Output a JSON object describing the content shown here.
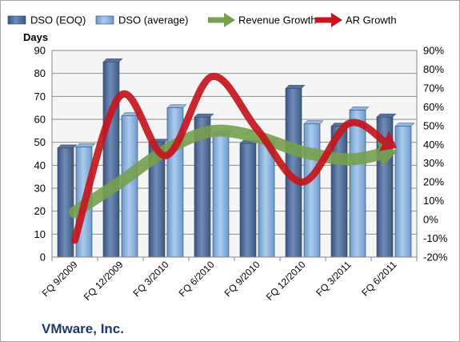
{
  "colors": {
    "dso_eoq_bar": "#4f6b96",
    "dso_avg_bar": "#8ab4e0",
    "revenue_growth": "#77a04f",
    "ar_growth": "#c5161d",
    "company_text": "#1f3a6e"
  },
  "company_name": "VMware, Inc.",
  "chart_data": {
    "type": "bar",
    "title": "",
    "categories": [
      "FQ 9/2009",
      "FQ 12/2009",
      "FQ 3/2010",
      "FQ 6/2010",
      "FQ 9/2010",
      "FQ 12/2010",
      "FQ 3/2011",
      "FQ 6/2011"
    ],
    "ylabel": "Days",
    "ylim": [
      0,
      90
    ],
    "yticks": [
      0,
      10,
      20,
      30,
      40,
      50,
      60,
      70,
      80,
      90
    ],
    "y2lim": [
      -20,
      90
    ],
    "y2ticks": [
      "-20%",
      "-10%",
      "0%",
      "10%",
      "20%",
      "30%",
      "40%",
      "50%",
      "60%",
      "70%",
      "80%",
      "90%"
    ],
    "y2ticks_values": [
      -20,
      -10,
      0,
      10,
      20,
      30,
      40,
      50,
      60,
      70,
      80,
      90
    ],
    "grid": true,
    "legend_position": "top",
    "series": [
      {
        "name": "DSO (EOQ)",
        "type": "bar",
        "axis": "left",
        "values": [
          47.5,
          85,
          50,
          61,
          49.5,
          73.5,
          57,
          61
        ]
      },
      {
        "name": "DSO (average)",
        "type": "bar",
        "axis": "left",
        "values": [
          48,
          61.5,
          65,
          53.5,
          50,
          58,
          64,
          57
        ]
      },
      {
        "name": "Revenue Growth",
        "type": "line",
        "axis": "right",
        "unit": "%",
        "values": [
          4,
          20,
          37,
          47,
          44,
          36,
          32,
          36
        ]
      },
      {
        "name": "AR Growth",
        "type": "line",
        "axis": "right",
        "unit": "%",
        "values": [
          -11,
          66,
          34,
          76,
          48,
          20,
          51,
          39
        ]
      }
    ]
  }
}
